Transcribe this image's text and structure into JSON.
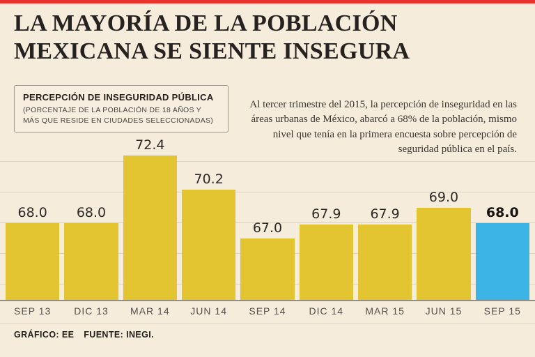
{
  "page": {
    "accent_red": "#e8342c",
    "background": "#f6ecdc"
  },
  "header": {
    "title_line1": "LA MAYORÍA DE LA POBLACIÓN",
    "title_line2": "MEXICANA SE SIENTE INSEGURA"
  },
  "legend_box": {
    "title": "PERCEPCIÓN DE INSEGURIDAD PÚBLICA",
    "subtitle": "(PORCENTAJE DE LA POBLACIÓN DE 18 AÑOS Y MÁS QUE RESIDE EN CIUDADES SELECCIONADAS)"
  },
  "annotation": {
    "text": "Al tercer trimestre del 2015, la percepción de inseguridad en las áreas urbanas de México, abarcó a 68% de la población, mismo nivel que tenía en la primera encuesta sobre percepción de seguridad pública en el país."
  },
  "footer": {
    "credit": "GRÁFICO: EE",
    "source": "FUENTE: INEGI."
  },
  "chart_data": {
    "type": "bar",
    "categories": [
      "SEP 13",
      "DIC 13",
      "MAR 14",
      "JUN 14",
      "SEP 14",
      "DIC 14",
      "MAR 15",
      "JUN 15",
      "SEP 15"
    ],
    "values": [
      68.0,
      68.0,
      72.4,
      70.2,
      67.0,
      67.9,
      67.9,
      69.0,
      68.0
    ],
    "highlight_index": 8,
    "bar_color": "#e3c431",
    "highlight_color": "#3cb4e5",
    "baseline_value": 63,
    "ylim": [
      63,
      73.5
    ],
    "gridline_values": [
      64,
      66,
      68,
      70,
      72
    ],
    "grid": true,
    "legend_position": "top-left",
    "title": "PERCEPCIÓN DE INSEGURIDAD PÚBLICA",
    "xlabel": "",
    "ylabel": ""
  }
}
